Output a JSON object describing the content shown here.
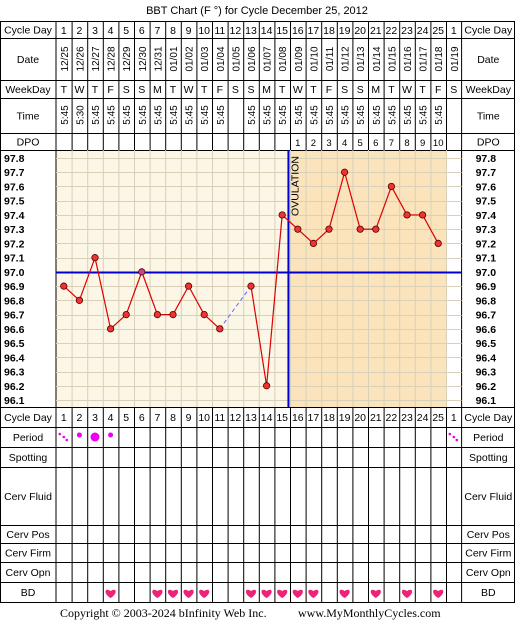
{
  "title": "BBT Chart (F °) for Cycle December 25, 2012",
  "copyright": "Copyright © 2003-2024 bInfinity Web Inc.",
  "website": "www.MyMonthlyCycles.com",
  "ovulation_label": "OVULATION",
  "row_labels": {
    "cycle_day": "Cycle Day",
    "date": "Date",
    "weekday": "WeekDay",
    "time": "Time",
    "dpo": "DPO",
    "period": "Period",
    "spotting": "Spotting",
    "cerv_fluid": "Cerv Fluid",
    "cerv_pos": "Cerv Pos",
    "cerv_firm": "Cerv Firm",
    "cerv_opn": "Cerv Opn",
    "bd": "BD"
  },
  "colors": {
    "grid": "#000000",
    "pre_ovulation_bg": "#fbf6e6",
    "post_ovulation_bg": "#fbe3bc",
    "line": "#dd0000",
    "point_fill": "#ee3333",
    "coverline": "#0000cc",
    "period_dot": "#ee00ee",
    "heart": "#ee2277",
    "dashed_gap": "#6666ff"
  },
  "chart_data": {
    "type": "line",
    "ylim": [
      96.1,
      97.8
    ],
    "y_ticks": [
      "97.8",
      "97.7",
      "97.6",
      "97.5",
      "97.4",
      "97.3",
      "97.2",
      "97.1",
      "97.0",
      "96.9",
      "96.8",
      "96.7",
      "96.6",
      "96.5",
      "96.4",
      "96.3",
      "96.2",
      "96.1"
    ],
    "cycle_days": [
      "1",
      "2",
      "3",
      "4",
      "5",
      "6",
      "7",
      "8",
      "9",
      "10",
      "11",
      "12",
      "13",
      "14",
      "15",
      "16",
      "17",
      "18",
      "19",
      "20",
      "21",
      "22",
      "23",
      "24",
      "25",
      "1"
    ],
    "dates": [
      "12/25",
      "12/26",
      "12/27",
      "12/28",
      "12/29",
      "12/30",
      "12/31",
      "01/01",
      "01/02",
      "01/03",
      "01/04",
      "01/05",
      "01/06",
      "01/07",
      "01/08",
      "01/09",
      "01/10",
      "01/11",
      "01/12",
      "01/13",
      "01/14",
      "01/15",
      "01/16",
      "01/17",
      "01/18",
      "01/19"
    ],
    "weekdays": [
      "T",
      "W",
      "T",
      "F",
      "S",
      "S",
      "M",
      "T",
      "W",
      "T",
      "F",
      "S",
      "S",
      "M",
      "T",
      "W",
      "T",
      "F",
      "S",
      "S",
      "M",
      "T",
      "W",
      "T",
      "F",
      "S"
    ],
    "times": [
      "5:45",
      "5:30",
      "5:45",
      "5:45",
      "5:45",
      "5:45",
      "5:45",
      "5:45",
      "5:45",
      "5:45",
      "5:45",
      "",
      "5:45",
      "5:45",
      "5:45",
      "5:45",
      "5:45",
      "5:45",
      "5:45",
      "5:45",
      "5:45",
      "5:45",
      "5:45",
      "5:45",
      "5:45",
      ""
    ],
    "dpo": [
      "",
      "",
      "",
      "",
      "",
      "",
      "",
      "",
      "",
      "",
      "",
      "",
      "",
      "",
      "",
      "1",
      "2",
      "3",
      "4",
      "5",
      "6",
      "7",
      "8",
      "9",
      "10",
      ""
    ],
    "temps": [
      96.9,
      96.8,
      97.1,
      96.6,
      96.7,
      97.0,
      96.7,
      96.7,
      96.9,
      96.7,
      96.6,
      null,
      96.9,
      96.2,
      97.4,
      97.3,
      97.2,
      97.3,
      97.7,
      97.3,
      97.3,
      97.6,
      97.4,
      97.4,
      97.2,
      null
    ],
    "coverline": 97.0,
    "ovulation_day_index": 14,
    "period": [
      "spotting",
      "light",
      "heavy",
      "light",
      "",
      "",
      "",
      "",
      "",
      "",
      "",
      "",
      "",
      "",
      "",
      "",
      "",
      "",
      "",
      "",
      "",
      "",
      "",
      "",
      "",
      "spotting"
    ],
    "bd": [
      false,
      false,
      false,
      true,
      false,
      false,
      true,
      true,
      true,
      true,
      false,
      false,
      true,
      true,
      true,
      true,
      true,
      false,
      true,
      false,
      true,
      false,
      true,
      false,
      true,
      false
    ]
  }
}
